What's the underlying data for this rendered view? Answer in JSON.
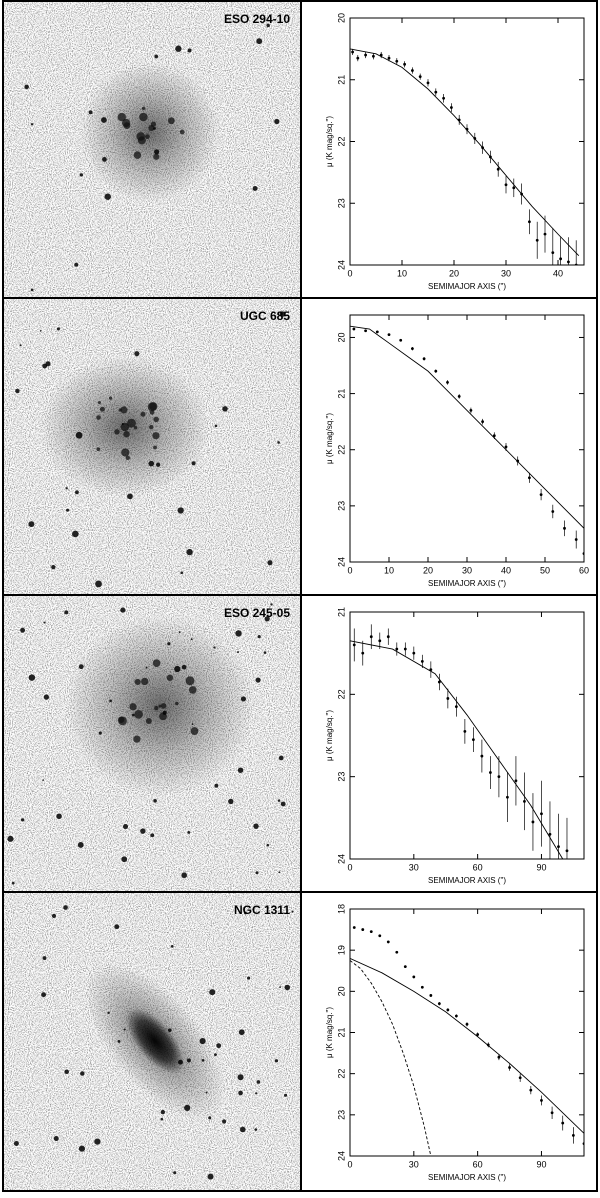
{
  "chart_data": [
    {
      "type": "scatter",
      "title": "ESO 294-10",
      "xlabel": "SEMIMAJOR AXIS (\")",
      "ylabel": "μ (K mag/sq.\")",
      "xlim": [
        0,
        45
      ],
      "ylim": [
        20,
        24
      ],
      "y_inverted": true,
      "xticks": [
        0,
        10,
        20,
        30,
        40
      ],
      "yticks": [
        20,
        21,
        22,
        23,
        24
      ],
      "series": [
        {
          "style": "points",
          "color": "#000000",
          "x": [
            0.5,
            1.5,
            3,
            4.5,
            6,
            7.5,
            9,
            10.5,
            12,
            13.5,
            15,
            16.5,
            18,
            19.5,
            21,
            22.5,
            24,
            25.5,
            27,
            28.5,
            30,
            31.5,
            33,
            34.5,
            36,
            37.5,
            39,
            40.5,
            42,
            43.5
          ],
          "values": [
            20.55,
            20.65,
            20.6,
            20.62,
            20.6,
            20.65,
            20.7,
            20.75,
            20.85,
            20.95,
            21.05,
            21.2,
            21.3,
            21.45,
            21.65,
            21.8,
            21.95,
            22.1,
            22.25,
            22.45,
            22.7,
            22.75,
            22.85,
            23.3,
            23.6,
            23.5,
            23.8,
            23.9,
            23.95,
            24.0
          ],
          "errors": [
            0.05,
            0.05,
            0.05,
            0.05,
            0.05,
            0.05,
            0.05,
            0.05,
            0.05,
            0.05,
            0.06,
            0.06,
            0.07,
            0.07,
            0.08,
            0.08,
            0.09,
            0.1,
            0.1,
            0.12,
            0.14,
            0.15,
            0.17,
            0.2,
            0.3,
            0.3,
            0.4,
            0.35,
            0.4,
            0.4
          ]
        },
        {
          "style": "line",
          "color": "#000000",
          "x": [
            0,
            5,
            10,
            15,
            20,
            25,
            30,
            35,
            40,
            44
          ],
          "values": [
            20.5,
            20.58,
            20.8,
            21.15,
            21.58,
            22.05,
            22.55,
            23.05,
            23.5,
            23.85
          ]
        }
      ]
    },
    {
      "type": "scatter",
      "title": "UGC 685",
      "xlabel": "SEMIMAJOR AXIS (\")",
      "ylabel": "μ (K mag/sq.\")",
      "xlim": [
        0,
        60
      ],
      "ylim": [
        19.6,
        24
      ],
      "y_inverted": true,
      "xticks": [
        0,
        10,
        20,
        30,
        40,
        50,
        60
      ],
      "yticks": [
        20,
        21,
        22,
        23,
        24
      ],
      "series": [
        {
          "style": "points",
          "color": "#000000",
          "x": [
            1,
            4,
            7,
            10,
            13,
            16,
            19,
            22,
            25,
            28,
            31,
            34,
            37,
            40,
            43,
            46,
            49,
            52,
            55,
            58,
            60
          ],
          "values": [
            19.85,
            19.88,
            19.9,
            19.95,
            20.05,
            20.2,
            20.38,
            20.6,
            20.8,
            21.05,
            21.3,
            21.5,
            21.75,
            21.95,
            22.2,
            22.5,
            22.8,
            23.1,
            23.4,
            23.6,
            23.85
          ],
          "errors": [
            0.02,
            0.02,
            0.02,
            0.02,
            0.02,
            0.03,
            0.03,
            0.03,
            0.04,
            0.04,
            0.05,
            0.05,
            0.06,
            0.07,
            0.08,
            0.09,
            0.1,
            0.12,
            0.14,
            0.16,
            0.2
          ]
        },
        {
          "style": "line",
          "color": "#000000",
          "x": [
            0,
            5,
            10,
            15,
            20,
            30,
            40,
            50,
            60
          ],
          "values": [
            19.8,
            19.85,
            20.1,
            20.35,
            20.6,
            21.3,
            22.0,
            22.7,
            23.4
          ]
        }
      ]
    },
    {
      "type": "scatter",
      "title": "ESO 245-05",
      "xlabel": "SEMIMAJOR AXIS (\")",
      "ylabel": "μ (K mag/sq.\")",
      "xlim": [
        0,
        110
      ],
      "ylim": [
        21,
        24
      ],
      "y_inverted": true,
      "xticks": [
        0,
        30,
        60,
        90
      ],
      "yticks": [
        21,
        22,
        23,
        24
      ],
      "series": [
        {
          "style": "points",
          "color": "#000000",
          "x": [
            2,
            6,
            10,
            14,
            18,
            22,
            26,
            30,
            34,
            38,
            42,
            46,
            50,
            54,
            58,
            62,
            66,
            70,
            74,
            78,
            82,
            86,
            90,
            94,
            98,
            102
          ],
          "values": [
            21.4,
            21.5,
            21.3,
            21.35,
            21.3,
            21.45,
            21.45,
            21.5,
            21.6,
            21.7,
            21.85,
            22.05,
            22.15,
            22.45,
            22.55,
            22.75,
            22.95,
            23.0,
            23.25,
            23.05,
            23.3,
            23.55,
            23.45,
            23.7,
            23.85,
            23.9
          ],
          "errors": [
            0.2,
            0.15,
            0.15,
            0.1,
            0.1,
            0.08,
            0.08,
            0.08,
            0.08,
            0.1,
            0.1,
            0.12,
            0.12,
            0.15,
            0.15,
            0.2,
            0.2,
            0.25,
            0.3,
            0.3,
            0.35,
            0.35,
            0.4,
            0.4,
            0.4,
            0.4
          ]
        },
        {
          "style": "line",
          "color": "#000000",
          "x": [
            0,
            20,
            40,
            55,
            70,
            85,
            100
          ],
          "values": [
            21.35,
            21.45,
            21.75,
            22.25,
            22.8,
            23.35,
            24.0
          ]
        }
      ]
    },
    {
      "type": "scatter",
      "title": "NGC 1311",
      "xlabel": "SEMIMAJOR AXIS (\")",
      "ylabel": "μ (K mag/sq.\")",
      "xlim": [
        0,
        110
      ],
      "ylim": [
        18,
        24
      ],
      "y_inverted": true,
      "xticks": [
        0,
        30,
        60,
        90
      ],
      "yticks": [
        18,
        19,
        20,
        21,
        22,
        23,
        24
      ],
      "series": [
        {
          "style": "points",
          "color": "#000000",
          "x": [
            2,
            6,
            10,
            14,
            18,
            22,
            26,
            30,
            34,
            38,
            42,
            46,
            50,
            55,
            60,
            65,
            70,
            75,
            80,
            85,
            90,
            95,
            100,
            105,
            110
          ],
          "values": [
            18.45,
            18.5,
            18.55,
            18.65,
            18.8,
            19.05,
            19.4,
            19.65,
            19.9,
            20.1,
            20.3,
            20.45,
            20.6,
            20.8,
            21.05,
            21.3,
            21.6,
            21.85,
            22.1,
            22.4,
            22.65,
            22.95,
            23.2,
            23.5,
            23.7
          ],
          "errors": [
            0.02,
            0.02,
            0.02,
            0.02,
            0.02,
            0.02,
            0.03,
            0.03,
            0.03,
            0.03,
            0.04,
            0.04,
            0.04,
            0.05,
            0.05,
            0.06,
            0.07,
            0.08,
            0.1,
            0.1,
            0.12,
            0.15,
            0.18,
            0.2,
            0.25
          ]
        },
        {
          "style": "line",
          "color": "#000000",
          "x": [
            0,
            15,
            30,
            45,
            60,
            75,
            90,
            105,
            110
          ],
          "values": [
            19.2,
            19.55,
            20.0,
            20.5,
            21.1,
            21.75,
            22.45,
            23.2,
            23.45
          ]
        },
        {
          "style": "dashed",
          "color": "#000000",
          "x": [
            0,
            5,
            10,
            15,
            20,
            25,
            30,
            35,
            38
          ],
          "values": [
            19.25,
            19.45,
            19.8,
            20.25,
            20.8,
            21.5,
            22.3,
            23.3,
            24.0
          ]
        }
      ]
    }
  ]
}
